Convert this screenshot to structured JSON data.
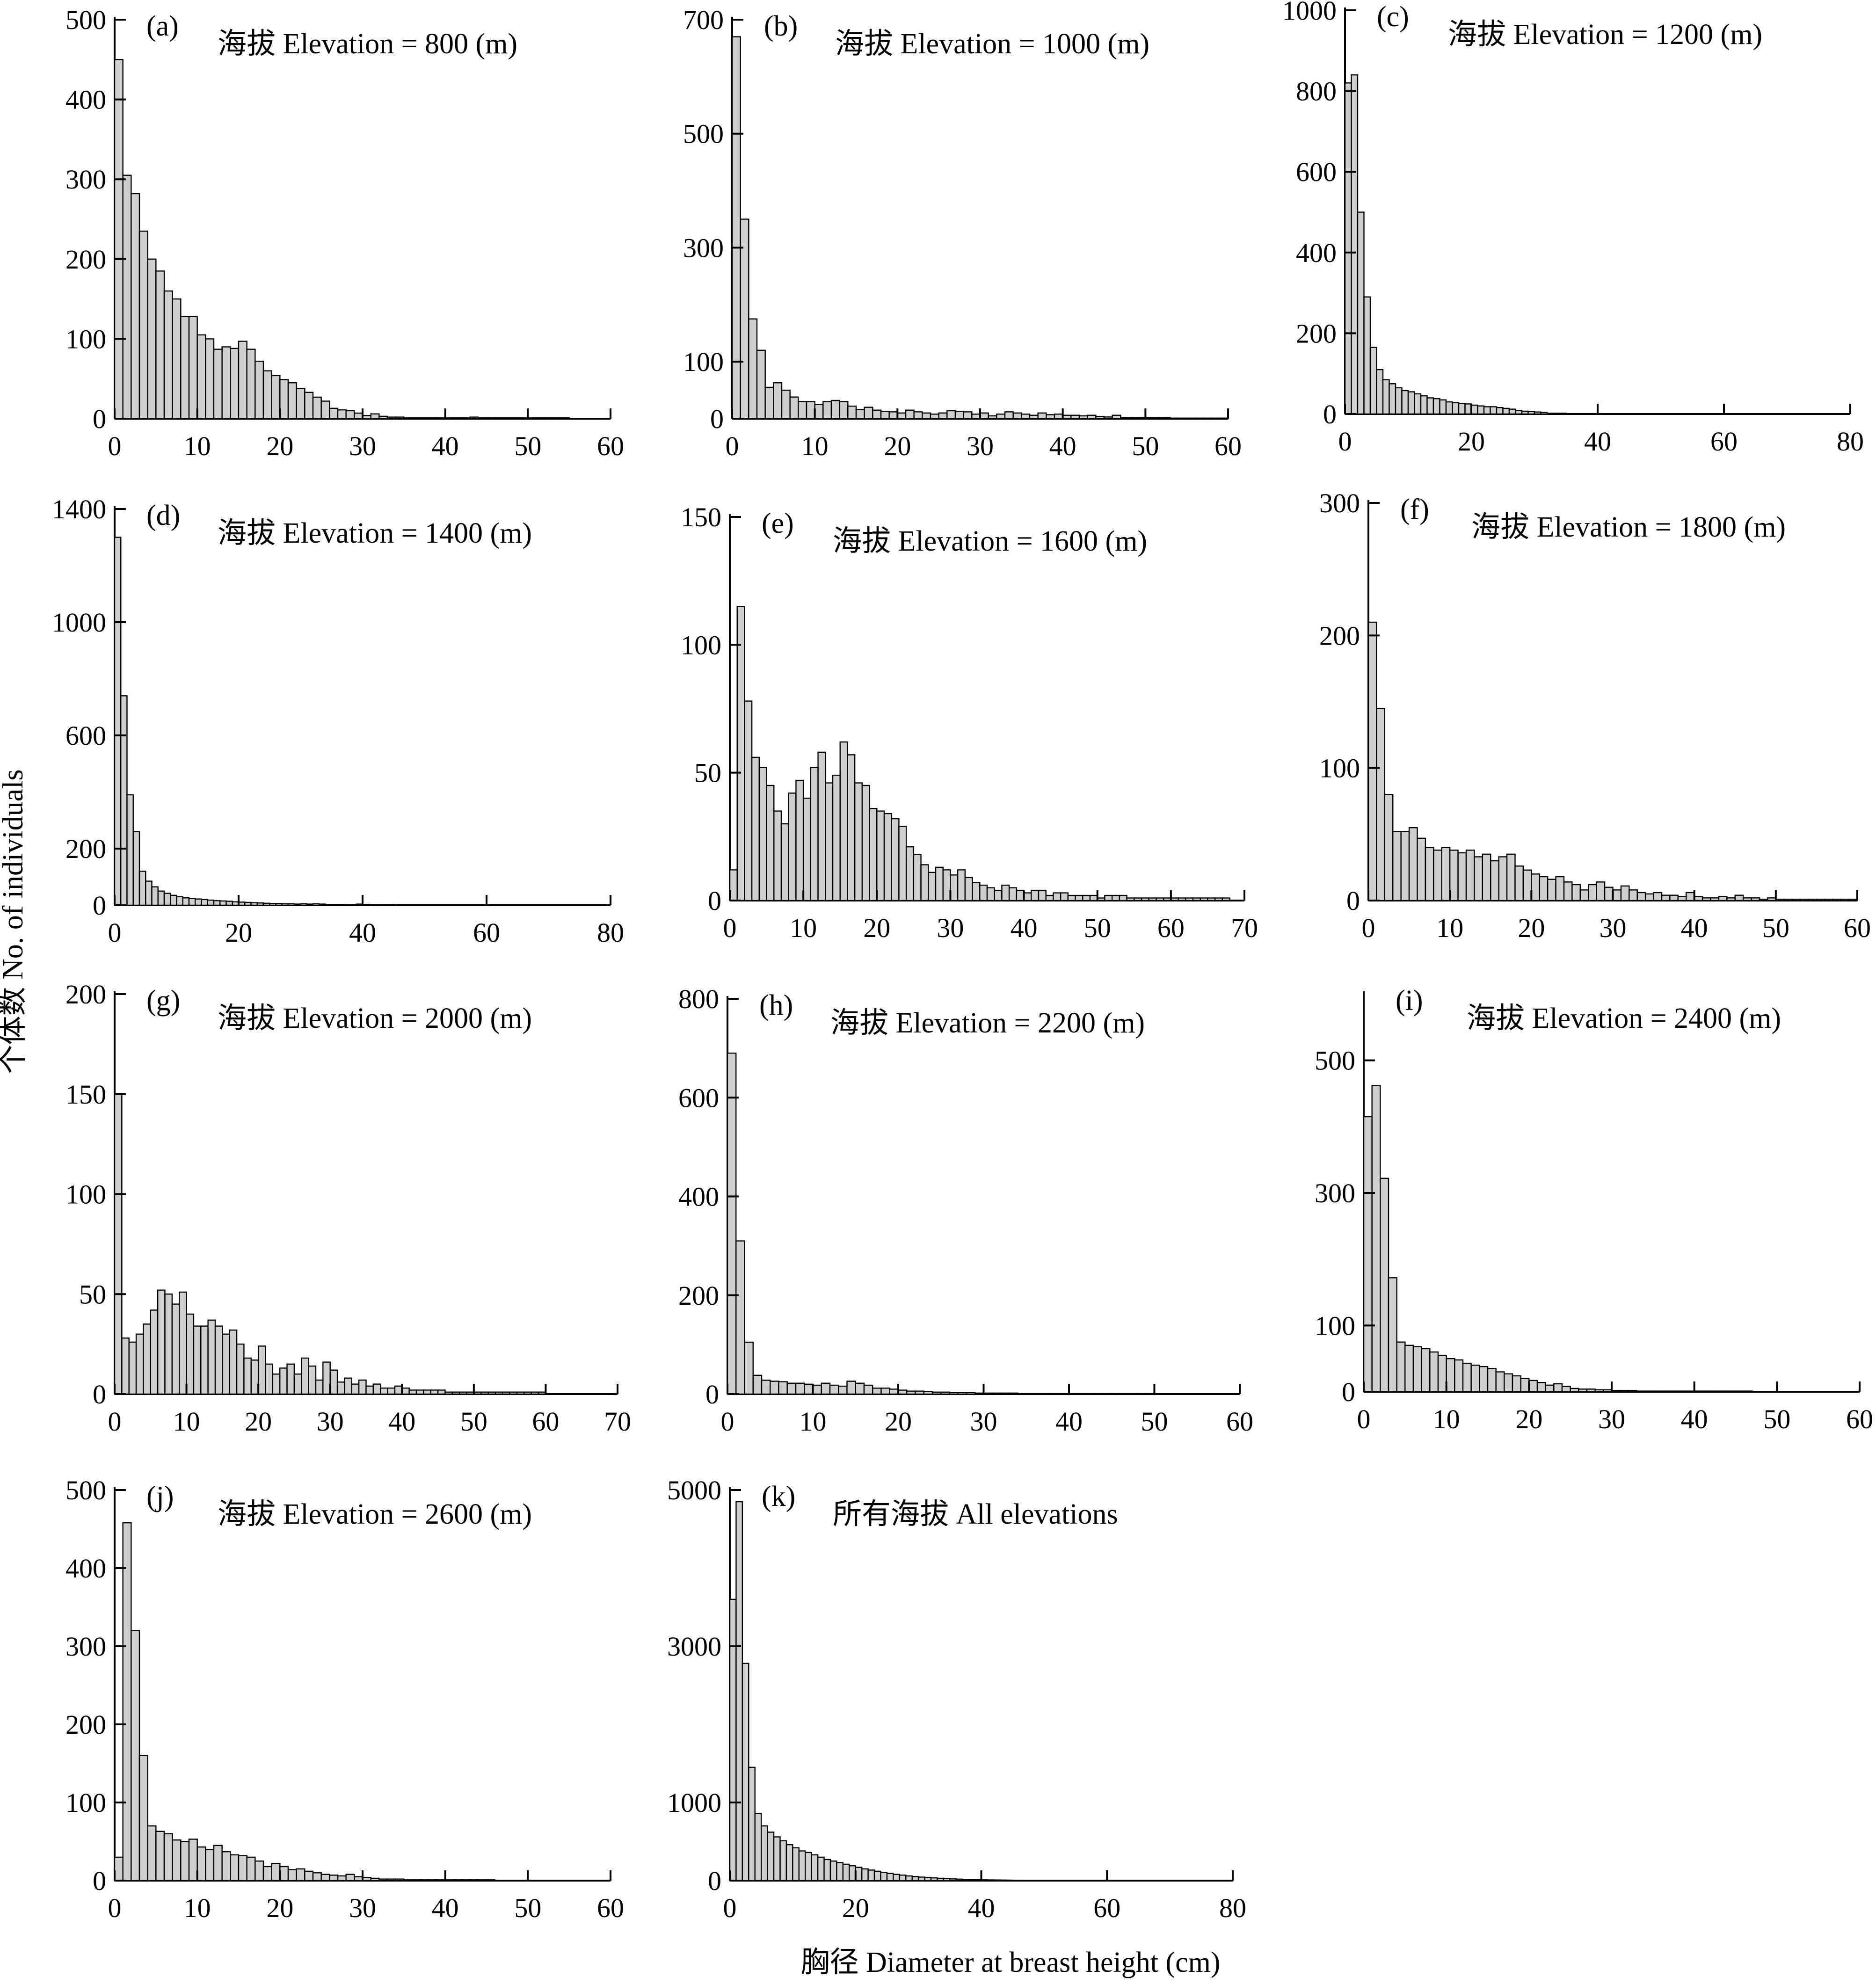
{
  "figure": {
    "ylabel": "个体数  No. of  individuals",
    "xlabel": "胸径 Diameter at breast height (cm)"
  },
  "chart_data": [
    {
      "type": "bar",
      "panel": "(a)",
      "title": "海拔  Elevation = 800 (m)",
      "xlim": [
        0,
        60
      ],
      "xticks": [
        0,
        10,
        20,
        30,
        40,
        50,
        60
      ],
      "ylim": [
        0,
        500
      ],
      "yticks": [
        0,
        100,
        200,
        300,
        400,
        500
      ],
      "bin_width": 1,
      "values": [
        450,
        305,
        282,
        235,
        200,
        185,
        160,
        150,
        128,
        128,
        105,
        100,
        87,
        90,
        88,
        97,
        87,
        72,
        60,
        54,
        49,
        45,
        38,
        33,
        27,
        22,
        13,
        11,
        10,
        7,
        4,
        6,
        3,
        2,
        2,
        1,
        1,
        1,
        1,
        1,
        1,
        1,
        1,
        2,
        1,
        1,
        1,
        1,
        1,
        1,
        1,
        1,
        1,
        1,
        1,
        0,
        0,
        0,
        0,
        0
      ]
    },
    {
      "type": "bar",
      "panel": "(b)",
      "title": "海拔  Elevation = 1000 (m)",
      "xlim": [
        0,
        60
      ],
      "xticks": [
        0,
        10,
        20,
        30,
        40,
        50,
        60
      ],
      "ylim": [
        0,
        700
      ],
      "yticks": [
        0,
        100,
        300,
        500,
        700
      ],
      "bin_width": 1,
      "values": [
        670,
        350,
        175,
        120,
        55,
        63,
        50,
        38,
        30,
        30,
        25,
        30,
        32,
        30,
        22,
        16,
        20,
        15,
        13,
        12,
        10,
        15,
        12,
        10,
        8,
        10,
        14,
        13,
        12,
        8,
        10,
        5,
        8,
        12,
        10,
        8,
        6,
        10,
        7,
        8,
        6,
        6,
        5,
        6,
        4,
        3,
        6,
        2,
        2,
        2,
        2,
        2,
        2,
        1,
        1,
        1,
        1,
        1,
        1,
        1
      ]
    },
    {
      "type": "bar",
      "panel": "(c)",
      "title": "海拔  Elevation = 1200 (m)",
      "xlim": [
        0,
        80
      ],
      "xticks": [
        0,
        20,
        40,
        60,
        80
      ],
      "ylim": [
        0,
        1000
      ],
      "yticks": [
        0,
        200,
        400,
        600,
        800,
        1000
      ],
      "bin_width": 1,
      "values": [
        820,
        840,
        500,
        290,
        165,
        110,
        85,
        75,
        65,
        58,
        55,
        50,
        45,
        40,
        38,
        35,
        30,
        28,
        26,
        25,
        22,
        20,
        18,
        18,
        16,
        14,
        12,
        9,
        7,
        6,
        5,
        4,
        2,
        2,
        2,
        1,
        1,
        1,
        1,
        1
      ]
    },
    {
      "type": "bar",
      "panel": "(d)",
      "title": "海拔 Elevation = 1400 (m)",
      "xlim": [
        0,
        80
      ],
      "xticks": [
        0,
        20,
        40,
        60,
        80
      ],
      "ylim": [
        0,
        1400
      ],
      "yticks": [
        0,
        200,
        600,
        1000,
        1400
      ],
      "bin_width": 1,
      "values": [
        1300,
        740,
        390,
        260,
        120,
        85,
        65,
        50,
        42,
        35,
        30,
        26,
        24,
        22,
        20,
        18,
        16,
        15,
        14,
        12,
        11,
        10,
        9,
        8,
        7,
        6,
        6,
        5,
        5,
        4,
        5,
        4,
        5,
        4,
        3,
        3,
        3,
        2,
        2,
        4,
        3,
        2,
        2,
        2,
        2,
        1,
        1,
        1,
        1,
        1,
        1,
        1,
        1,
        1,
        1,
        1,
        1,
        1,
        1,
        0
      ]
    },
    {
      "type": "bar",
      "panel": "(e)",
      "title": "海拔  Elevation = 1600 (m)",
      "xlim": [
        0,
        70
      ],
      "xticks": [
        0,
        10,
        20,
        30,
        40,
        50,
        60,
        70
      ],
      "ylim": [
        0,
        150
      ],
      "yticks": [
        0,
        50,
        100,
        150
      ],
      "bin_width": 1,
      "values": [
        12,
        115,
        78,
        56,
        52,
        45,
        35,
        30,
        42,
        47,
        40,
        52,
        58,
        46,
        49,
        62,
        57,
        46,
        45,
        36,
        35,
        34,
        32,
        29,
        21,
        18,
        14,
        11,
        13,
        12,
        10,
        12,
        9,
        7,
        6,
        5,
        4,
        6,
        5,
        4,
        3,
        4,
        4,
        2,
        3,
        3,
        2,
        2,
        2,
        2,
        1,
        2,
        2,
        2,
        1,
        1,
        1,
        1,
        1,
        1,
        1,
        1,
        1,
        1,
        1,
        1,
        1,
        1
      ]
    },
    {
      "type": "bar",
      "panel": "(f)",
      "title": "海拔  Elevation = 1800 (m)",
      "xlim": [
        0,
        60
      ],
      "xticks": [
        0,
        10,
        20,
        30,
        40,
        50,
        60
      ],
      "ylim": [
        0,
        300
      ],
      "yticks": [
        0,
        100,
        200,
        300
      ],
      "bin_width": 1,
      "values": [
        210,
        145,
        80,
        52,
        52,
        55,
        47,
        40,
        38,
        40,
        38,
        36,
        38,
        33,
        35,
        30,
        33,
        35,
        26,
        23,
        20,
        18,
        16,
        18,
        14,
        12,
        8,
        12,
        14,
        10,
        8,
        11,
        8,
        6,
        5,
        6,
        4,
        4,
        3,
        6,
        3,
        2,
        2,
        3,
        2,
        4,
        2,
        2,
        1,
        2,
        1,
        1,
        1,
        1,
        1,
        1,
        1,
        1,
        1,
        1
      ]
    },
    {
      "type": "bar",
      "panel": "(g)",
      "title": "海拔  Elevation = 2000 (m)",
      "xlim": [
        0,
        70
      ],
      "xticks": [
        0,
        10,
        20,
        30,
        40,
        50,
        60,
        70
      ],
      "ylim": [
        0,
        200
      ],
      "yticks": [
        0,
        50,
        100,
        150,
        200
      ],
      "bin_width": 1,
      "values": [
        150,
        28,
        26,
        30,
        35,
        42,
        52,
        50,
        45,
        51,
        40,
        34,
        34,
        37,
        34,
        30,
        32,
        25,
        18,
        17,
        24,
        15,
        10,
        13,
        15,
        10,
        18,
        14,
        7,
        16,
        12,
        6,
        8,
        5,
        7,
        4,
        5,
        3,
        3,
        4,
        3,
        2,
        2,
        2,
        2,
        2,
        1,
        1,
        1,
        1,
        1,
        1,
        1,
        1,
        1,
        1,
        1,
        1,
        1,
        1
      ]
    },
    {
      "type": "bar",
      "panel": "(h)",
      "title": "海拔  Elevation = 2200 (m)",
      "xlim": [
        0,
        60
      ],
      "xticks": [
        0,
        10,
        20,
        30,
        40,
        50,
        60
      ],
      "ylim": [
        0,
        800
      ],
      "yticks": [
        0,
        200,
        400,
        600,
        800
      ],
      "bin_width": 1,
      "values": [
        690,
        310,
        105,
        38,
        28,
        26,
        25,
        22,
        22,
        20,
        18,
        22,
        18,
        16,
        26,
        22,
        18,
        12,
        12,
        10,
        8,
        6,
        6,
        5,
        4,
        4,
        3,
        3,
        3,
        2,
        2,
        2,
        2,
        2,
        1,
        1,
        1,
        1,
        1,
        1,
        1,
        1,
        1,
        1,
        1,
        1,
        1,
        1,
        1,
        1,
        0,
        0,
        0,
        0,
        0,
        0,
        0,
        0,
        0,
        0
      ]
    },
    {
      "type": "bar",
      "panel": "(i)",
      "title": "海拔  Elevation = 2400 (m)",
      "xlim": [
        0,
        60
      ],
      "xticks": [
        0,
        10,
        20,
        30,
        40,
        50,
        60
      ],
      "ylim": [
        0,
        600
      ],
      "yticks": [
        0,
        100,
        300,
        500
      ],
      "bin_width": 1,
      "values": [
        415,
        462,
        322,
        172,
        75,
        70,
        68,
        65,
        60,
        55,
        50,
        48,
        43,
        40,
        38,
        35,
        30,
        27,
        24,
        20,
        17,
        14,
        10,
        12,
        8,
        5,
        4,
        4,
        3,
        3,
        2,
        2,
        2,
        1,
        1,
        1,
        1,
        1,
        1,
        1,
        1,
        1,
        1,
        1,
        1,
        1,
        1,
        0,
        0,
        0,
        0,
        0,
        0,
        0,
        0,
        0,
        0,
        0,
        0,
        0
      ]
    },
    {
      "type": "bar",
      "panel": "(j)",
      "title": "海拔  Elevation = 2600 (m)",
      "xlim": [
        0,
        60
      ],
      "xticks": [
        0,
        10,
        20,
        30,
        40,
        50,
        60
      ],
      "ylim": [
        0,
        500
      ],
      "yticks": [
        0,
        100,
        200,
        300,
        400,
        500
      ],
      "bin_width": 1,
      "values": [
        30,
        458,
        320,
        160,
        70,
        63,
        60,
        52,
        50,
        53,
        43,
        40,
        45,
        37,
        33,
        32,
        30,
        25,
        18,
        22,
        18,
        14,
        15,
        12,
        10,
        8,
        7,
        6,
        8,
        5,
        4,
        3,
        2,
        2,
        2,
        1,
        1,
        1,
        1,
        1,
        1,
        1,
        1,
        1,
        1,
        1,
        0,
        0,
        0,
        0,
        0,
        0,
        0,
        0,
        0,
        0,
        0,
        0,
        0,
        0
      ]
    },
    {
      "type": "bar",
      "panel": "(k)",
      "title": "所有海拔  All elevations",
      "xlim": [
        0,
        80
      ],
      "xticks": [
        0,
        20,
        40,
        60,
        80
      ],
      "ylim": [
        0,
        5000
      ],
      "yticks": [
        0,
        1000,
        3000,
        5000
      ],
      "bin_width": 1,
      "values": [
        3600,
        4850,
        2780,
        1450,
        860,
        700,
        620,
        560,
        510,
        460,
        420,
        380,
        360,
        330,
        300,
        270,
        250,
        230,
        210,
        190,
        170,
        150,
        135,
        120,
        105,
        92,
        80,
        70,
        60,
        52,
        45,
        40,
        35,
        30,
        26,
        22,
        19,
        16,
        14,
        12,
        10,
        9,
        8,
        7,
        6,
        5,
        5,
        4,
        4,
        3,
        3,
        3,
        2,
        2,
        2,
        2,
        2,
        1,
        1,
        1
      ]
    }
  ]
}
